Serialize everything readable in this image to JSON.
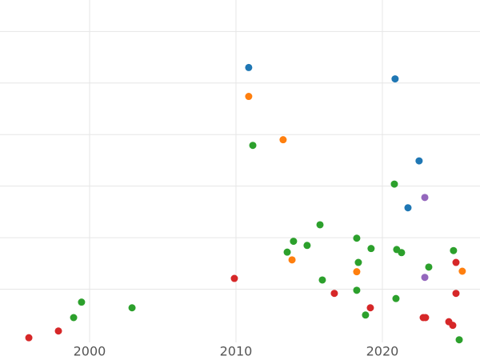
{
  "chart_data": {
    "type": "scatter",
    "xlim": [
      1993.88,
      2026.67
    ],
    "ylim": [
      0,
      6.61
    ],
    "xticks": [
      2000,
      2010,
      2020
    ],
    "yticks": [
      1,
      2,
      3,
      4,
      5,
      6
    ],
    "grid": true,
    "series": [
      {
        "color": "#1f77b4",
        "x": [
          2010.87,
          2020.87,
          2022.51,
          2021.75
        ],
        "values": [
          5.3,
          5.08,
          3.49,
          2.58
        ]
      },
      {
        "color": "#ff7f0e",
        "x": [
          2010.87,
          2013.22,
          2013.83,
          2018.25,
          2025.46
        ],
        "values": [
          4.74,
          3.9,
          1.57,
          1.34,
          1.35
        ]
      },
      {
        "color": "#2ca02c",
        "x": [
          2011.15,
          2020.82,
          2015.74,
          2013.93,
          2014.86,
          2013.5,
          2018.25,
          2019.23,
          2020.98,
          2021.31,
          2024.86,
          2018.36,
          2023.17,
          2015.9,
          2018.25,
          2020.93,
          2018.85,
          2025.25,
          1999.45,
          2002.9,
          1998.91
        ],
        "values": [
          3.79,
          3.04,
          2.25,
          1.93,
          1.85,
          1.72,
          1.99,
          1.79,
          1.77,
          1.71,
          1.75,
          1.52,
          1.43,
          1.18,
          0.98,
          0.82,
          0.5,
          0.02,
          0.75,
          0.64,
          0.45
        ]
      },
      {
        "color": "#d62728",
        "x": [
          1995.85,
          1997.87,
          2009.89,
          2016.72,
          2019.18,
          2025.03,
          2025.03,
          2022.79,
          2022.95,
          2024.54,
          2024.81
        ],
        "values": [
          0.06,
          0.19,
          1.21,
          0.92,
          0.64,
          1.52,
          0.92,
          0.45,
          0.45,
          0.37,
          0.3
        ]
      },
      {
        "color": "#9467bd",
        "x": [
          2022.9,
          2022.9
        ],
        "values": [
          2.78,
          1.23
        ]
      }
    ]
  }
}
